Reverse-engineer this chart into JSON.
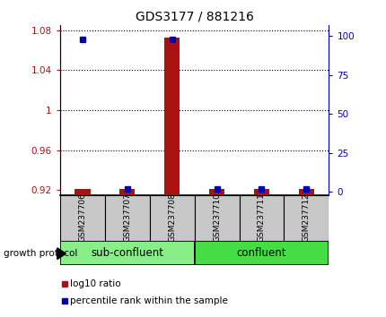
{
  "title": "GDS3177 / 881216",
  "samples": [
    "GSM237706",
    "GSM237707",
    "GSM237708",
    "GSM237710",
    "GSM237711",
    "GSM237712"
  ],
  "log10_ratio": [
    0.921,
    0.921,
    1.073,
    0.921,
    0.921,
    0.921
  ],
  "percentile_rank": [
    98,
    2,
    98,
    2,
    2,
    2
  ],
  "ylim_left": [
    0.915,
    1.085
  ],
  "ylim_right": [
    -2,
    107
  ],
  "yticks_left": [
    0.92,
    0.96,
    1.0,
    1.04,
    1.08
  ],
  "yticks_right": [
    0,
    25,
    50,
    75,
    100
  ],
  "ytick_labels_left": [
    "0.92",
    "0.96",
    "1",
    "1.04",
    "1.08"
  ],
  "ytick_labels_right": [
    "0",
    "25",
    "50",
    "75",
    "100"
  ],
  "dotted_yticks": [
    0.96,
    1.0,
    1.04,
    1.08
  ],
  "bar_color": "#aa1111",
  "percentile_color": "#0000bb",
  "sub_confluent_label": "sub-confluent",
  "confluent_label": "confluent",
  "growth_protocol_label": "growth protocol",
  "legend_ratio_label": "log10 ratio",
  "legend_percentile_label": "percentile rank within the sample",
  "sample_bg_color": "#c8c8c8",
  "sub_confluent_color": "#88ee88",
  "confluent_color": "#44dd44",
  "bar_width": 0.35
}
